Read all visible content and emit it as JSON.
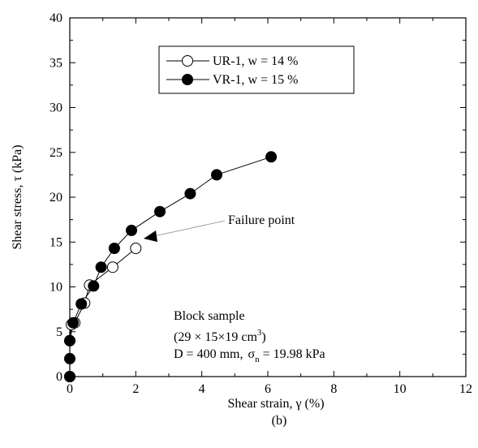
{
  "chart_data": {
    "type": "scatter",
    "xlabel": "Shear strain, γ (%)",
    "ylabel": "Shear stress, τ (kPa)",
    "xlim": [
      0,
      12
    ],
    "ylim": [
      0,
      40
    ],
    "xticks": [
      "0",
      "2",
      "4",
      "6",
      "8",
      "10",
      "12"
    ],
    "yticks": [
      "0",
      "5",
      "10",
      "15",
      "20",
      "25",
      "30",
      "35",
      "40"
    ],
    "panel_label": "(b)",
    "legend_position": "top-center",
    "series": [
      {
        "name": "UR-1, w = 14 %",
        "marker": "open-circle",
        "x": [
          0.0,
          0.0,
          0.05,
          0.15,
          0.45,
          0.6,
          1.3,
          2.0
        ],
        "y": [
          0.0,
          4.0,
          5.8,
          6.0,
          8.2,
          10.2,
          12.2,
          14.3
        ]
      },
      {
        "name": "VR-1, w = 15 %",
        "marker": "filled-circle",
        "x": [
          0.0,
          0.0,
          0.0,
          0.1,
          0.35,
          0.72,
          0.95,
          1.35,
          1.87,
          2.73,
          3.65,
          4.45,
          6.1
        ],
        "y": [
          0.0,
          2.0,
          4.0,
          6.0,
          8.1,
          10.1,
          12.2,
          14.3,
          16.3,
          18.4,
          20.4,
          22.5,
          24.5
        ]
      }
    ],
    "annotations": {
      "failure_point": {
        "text": "Failure point",
        "x": 2.0,
        "y": 14.3
      },
      "sample_line1": "Block sample",
      "sample_line2_main": "(29 × 15×19 cm",
      "sample_line2_sup": "3",
      "sample_line2_end": ")",
      "conditions_d": "D = 400 mm,",
      "conditions_sigma": "σ",
      "conditions_sub": "n",
      "conditions_value": " = 19.98 kPa"
    }
  }
}
